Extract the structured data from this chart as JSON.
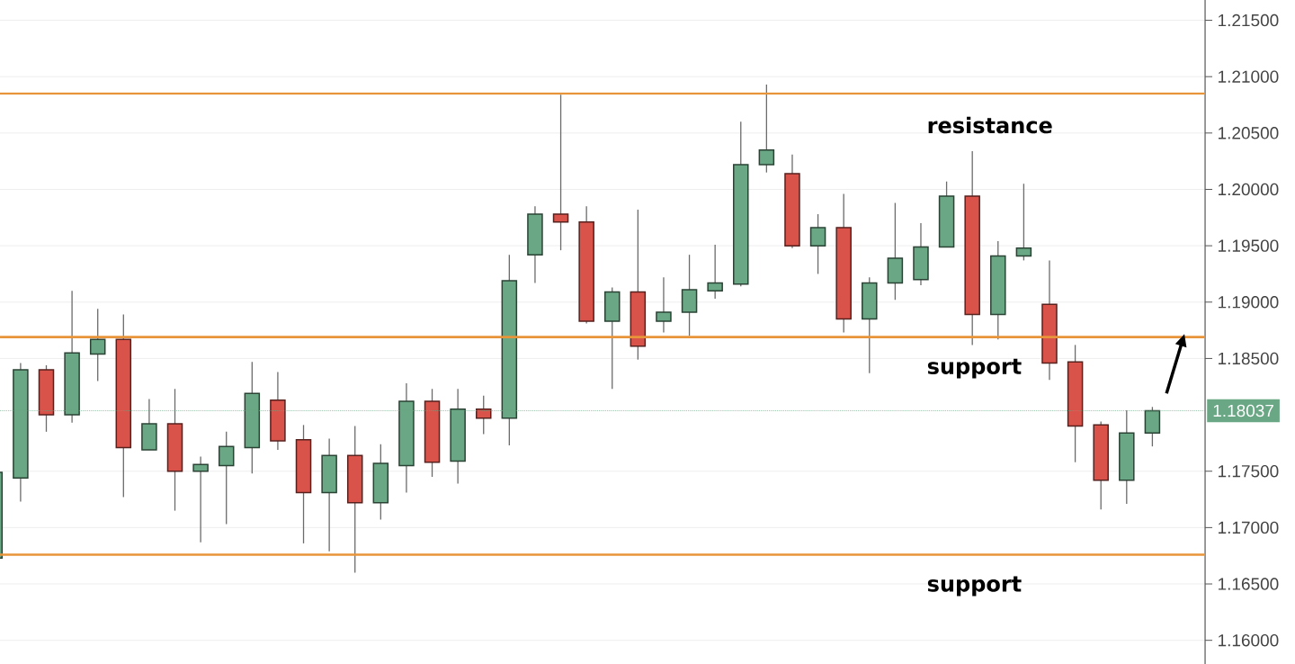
{
  "chart_data": {
    "type": "candlestick",
    "categories": [
      null,
      null,
      null,
      null,
      null,
      null,
      null,
      null,
      null,
      null,
      null,
      null,
      null,
      null,
      null,
      null,
      null,
      null,
      null,
      null,
      null,
      null,
      null,
      null,
      null,
      null,
      null,
      null,
      null,
      null,
      null,
      null,
      null,
      null,
      null,
      null,
      null,
      null,
      null,
      null,
      null,
      null,
      null,
      null,
      null,
      null
    ],
    "ohlc": [
      [
        1.1673,
        1.1749,
        1.1673,
        1.1749
      ],
      [
        1.1744,
        1.1846,
        1.1723,
        1.184
      ],
      [
        1.184,
        1.1844,
        1.1785,
        1.18
      ],
      [
        1.18,
        1.191,
        1.1793,
        1.1855
      ],
      [
        1.1854,
        1.1894,
        1.183,
        1.1867
      ],
      [
        1.1867,
        1.1889,
        1.1727,
        1.1771
      ],
      [
        1.1769,
        1.1814,
        1.1769,
        1.1792
      ],
      [
        1.1792,
        1.1823,
        1.1715,
        1.175
      ],
      [
        1.175,
        1.1763,
        1.1687,
        1.1756
      ],
      [
        1.1755,
        1.1785,
        1.1703,
        1.1772
      ],
      [
        1.1771,
        1.1847,
        1.1748,
        1.1819
      ],
      [
        1.1813,
        1.1838,
        1.1769,
        1.1777
      ],
      [
        1.1778,
        1.1791,
        1.1686,
        1.1731
      ],
      [
        1.1731,
        1.1779,
        1.1679,
        1.1764
      ],
      [
        1.1764,
        1.179,
        1.166,
        1.1722
      ],
      [
        1.1722,
        1.1774,
        1.1707,
        1.1757
      ],
      [
        1.1755,
        1.1828,
        1.1731,
        1.1812
      ],
      [
        1.1812,
        1.1823,
        1.1745,
        1.1758
      ],
      [
        1.1759,
        1.1823,
        1.1739,
        1.1805
      ],
      [
        1.1805,
        1.1817,
        1.1783,
        1.1797
      ],
      [
        1.1797,
        1.1942,
        1.1773,
        1.1919
      ],
      [
        1.1942,
        1.1985,
        1.1917,
        1.1978
      ],
      [
        1.1978,
        1.2084,
        1.1946,
        1.1971
      ],
      [
        1.1971,
        1.1985,
        1.1881,
        1.1883
      ],
      [
        1.1883,
        1.1913,
        1.1823,
        1.1909
      ],
      [
        1.1909,
        1.1982,
        1.1849,
        1.1861
      ],
      [
        1.1883,
        1.1922,
        1.1873,
        1.1891
      ],
      [
        1.1891,
        1.1942,
        1.187,
        1.1911
      ],
      [
        1.191,
        1.1951,
        1.1903,
        1.1917
      ],
      [
        1.1916,
        1.206,
        1.1914,
        1.2022
      ],
      [
        1.2022,
        1.2093,
        1.2015,
        1.2035
      ],
      [
        1.2014,
        1.2031,
        1.1948,
        1.195
      ],
      [
        1.195,
        1.1978,
        1.1925,
        1.1966
      ],
      [
        1.1966,
        1.1996,
        1.1873,
        1.1885
      ],
      [
        1.1885,
        1.1922,
        1.1837,
        1.1917
      ],
      [
        1.1917,
        1.1988,
        1.1902,
        1.1939
      ],
      [
        1.192,
        1.197,
        1.1915,
        1.1949
      ],
      [
        1.1949,
        1.2007,
        1.1949,
        1.1994
      ],
      [
        1.1994,
        1.2034,
        1.1862,
        1.1889
      ],
      [
        1.1889,
        1.1954,
        1.1867,
        1.1941
      ],
      [
        1.1941,
        1.2005,
        1.1937,
        1.1948
      ],
      [
        1.1898,
        1.1937,
        1.1831,
        1.1846
      ],
      [
        1.1847,
        1.1862,
        1.1758,
        1.179
      ],
      [
        1.1791,
        1.1794,
        1.1716,
        1.1742
      ],
      [
        1.1742,
        1.1804,
        1.1721,
        1.1784
      ],
      [
        1.1784,
        1.1807,
        1.1772,
        1.18037
      ]
    ],
    "colors": [
      "#6aa784",
      "#6aa784",
      "#d9534a",
      "#6aa784",
      "#6aa784",
      "#d9534a",
      "#6aa784",
      "#d9534a",
      "#6aa784",
      "#6aa784",
      "#6aa784",
      "#d9534a",
      "#d9534a",
      "#6aa784",
      "#d9534a",
      "#6aa784",
      "#6aa784",
      "#d9534a",
      "#6aa784",
      "#d9534a",
      "#6aa784",
      "#6aa784",
      "#d9534a",
      "#d9534a",
      "#6aa784",
      "#d9534a",
      "#6aa784",
      "#6aa784",
      "#6aa784",
      "#6aa784",
      "#6aa784",
      "#d9534a",
      "#6aa784",
      "#d9534a",
      "#6aa784",
      "#6aa784",
      "#6aa784",
      "#6aa784",
      "#d9534a",
      "#6aa784",
      "#6aa784",
      "#d9534a",
      "#d9534a",
      "#d9534a",
      "#6aa784",
      "#6aa784"
    ],
    "ylim": [
      1.1579,
      1.2168
    ],
    "yticks": [
      {
        "value": 1.16,
        "label": "1.16000"
      },
      {
        "value": 1.165,
        "label": "1.16500"
      },
      {
        "value": 1.17,
        "label": "1.17000"
      },
      {
        "value": 1.175,
        "label": "1.17500"
      },
      {
        "value": 1.185,
        "label": "1.18500"
      },
      {
        "value": 1.19,
        "label": "1.19000"
      },
      {
        "value": 1.195,
        "label": "1.19500"
      },
      {
        "value": 1.2,
        "label": "1.20000"
      },
      {
        "value": 1.205,
        "label": "1.20500"
      },
      {
        "value": 1.21,
        "label": "1.21000"
      },
      {
        "value": 1.215,
        "label": "1.21500"
      }
    ],
    "grid": "y",
    "ref_lines": [
      {
        "axis": "y",
        "value": 1.2085,
        "label": "resistance",
        "color": "#e8943a",
        "line_style": "solid"
      },
      {
        "axis": "y",
        "value": 1.1869,
        "label": "support",
        "color": "#e8943a",
        "line_style": "solid"
      },
      {
        "axis": "y",
        "value": 1.1676,
        "label": "support",
        "color": "#e8943a",
        "line_style": "solid"
      },
      {
        "axis": "y",
        "value": 1.18037,
        "label": "1.18037",
        "color": "#6aa784",
        "line_style": "dotted"
      }
    ]
  }
}
